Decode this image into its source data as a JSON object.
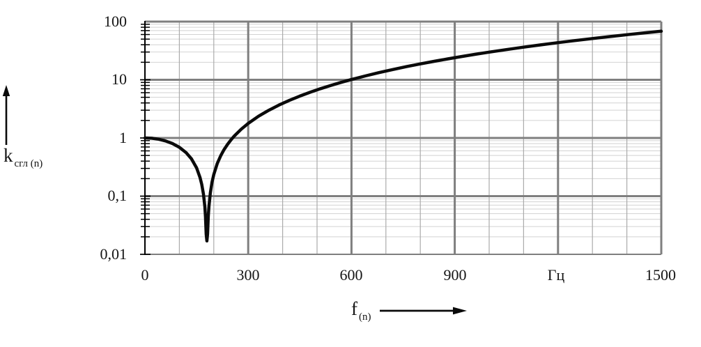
{
  "chart_data": {
    "type": "line",
    "title": "",
    "xlabel": "f(n)",
    "ylabel": "k сгл (n)",
    "xlabel_main": "f",
    "xlabel_sub": "(n)",
    "ylabel_main": "k",
    "ylabel_sub": "сгл (n)",
    "x_unit": "Гц",
    "xlim": [
      0,
      1500
    ],
    "ylim": [
      0.01,
      100
    ],
    "y_scale": "log",
    "x_major_step": 300,
    "x_minor_step": 100,
    "grid": {
      "major": true,
      "minor": true
    },
    "legend": "none",
    "x_tick_labels": [
      {
        "value": 0,
        "label": "0"
      },
      {
        "value": 300,
        "label": "300"
      },
      {
        "value": 600,
        "label": "600"
      },
      {
        "value": 900,
        "label": "900"
      },
      {
        "value": 1200,
        "label": "Гц"
      },
      {
        "value": 1500,
        "label": "1500"
      }
    ],
    "y_tick_labels": [
      {
        "value": 100,
        "label": "100"
      },
      {
        "value": 10,
        "label": "10"
      },
      {
        "value": 1,
        "label": "1"
      },
      {
        "value": 0.1,
        "label": "0,1"
      },
      {
        "value": 0.01,
        "label": "0,01"
      }
    ],
    "colors": {
      "curve": "#0a0a0a",
      "grid_major": "#7f7f7f",
      "grid_minor": "#d2d2d2",
      "grid_minor_v": "#ababab",
      "axis": "#000000"
    },
    "series": [
      {
        "name": "k_sgl(n)",
        "points": [
          [
            0,
            1.0
          ],
          [
            20,
            0.988
          ],
          [
            40,
            0.951
          ],
          [
            60,
            0.889
          ],
          [
            80,
            0.802
          ],
          [
            100,
            0.691
          ],
          [
            120,
            0.556
          ],
          [
            135,
            0.438
          ],
          [
            150,
            0.306
          ],
          [
            160,
            0.21
          ],
          [
            165,
            0.16
          ],
          [
            170,
            0.108
          ],
          [
            174,
            0.0656
          ],
          [
            176,
            0.044
          ],
          [
            178,
            0.0221
          ],
          [
            180,
            0.017
          ],
          [
            182,
            0.0224
          ],
          [
            184,
            0.0449
          ],
          [
            186,
            0.0676
          ],
          [
            190,
            0.114
          ],
          [
            195,
            0.174
          ],
          [
            200,
            0.235
          ],
          [
            210,
            0.361
          ],
          [
            220,
            0.494
          ],
          [
            230,
            0.633
          ],
          [
            240,
            0.778
          ],
          [
            250,
            0.929
          ],
          [
            260,
            1.086
          ],
          [
            280,
            1.42
          ],
          [
            300,
            1.778
          ],
          [
            330,
            2.361
          ],
          [
            360,
            3.0
          ],
          [
            390,
            3.694
          ],
          [
            420,
            4.444
          ],
          [
            450,
            5.25
          ],
          [
            480,
            6.111
          ],
          [
            510,
            7.028
          ],
          [
            540,
            8.0
          ],
          [
            570,
            9.028
          ],
          [
            600,
            10.111
          ],
          [
            640,
            11.64
          ],
          [
            680,
            13.27
          ],
          [
            720,
            15.0
          ],
          [
            760,
            16.83
          ],
          [
            800,
            18.75
          ],
          [
            840,
            20.78
          ],
          [
            880,
            22.9
          ],
          [
            920,
            25.12
          ],
          [
            960,
            27.44
          ],
          [
            1000,
            29.86
          ],
          [
            1050,
            33.03
          ],
          [
            1100,
            36.35
          ],
          [
            1150,
            39.82
          ],
          [
            1200,
            43.44
          ],
          [
            1250,
            47.23
          ],
          [
            1300,
            51.16
          ],
          [
            1350,
            55.25
          ],
          [
            1400,
            59.49
          ],
          [
            1450,
            63.89
          ],
          [
            1500,
            68.44
          ]
        ]
      }
    ]
  }
}
